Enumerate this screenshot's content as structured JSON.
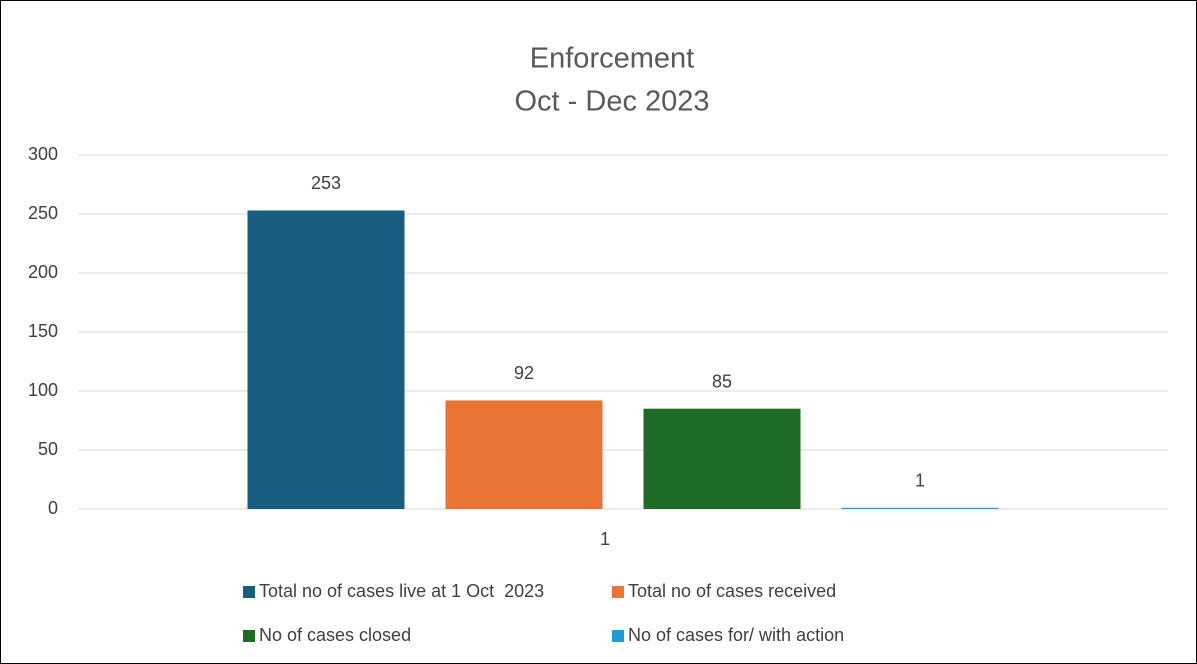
{
  "chart_data": {
    "type": "bar",
    "title": "Enforcement",
    "subtitle": "Oct - Dec 2023",
    "categories": [
      "1"
    ],
    "series": [
      {
        "name": "Total no of cases live at 1 Oct  2023",
        "color": "#175e80",
        "values": [
          253
        ]
      },
      {
        "name": "Total no of cases received",
        "color": "#e97434",
        "values": [
          92
        ]
      },
      {
        "name": "No of cases closed",
        "color": "#1e6b26",
        "values": [
          85
        ]
      },
      {
        "name": "No of cases for/ with action",
        "color": "#1f9bd7",
        "values": [
          1
        ]
      }
    ],
    "ylim": [
      0,
      300
    ],
    "yticks": [
      0,
      50,
      100,
      150,
      200,
      250,
      300
    ],
    "grid": true,
    "legend": "bottom"
  }
}
